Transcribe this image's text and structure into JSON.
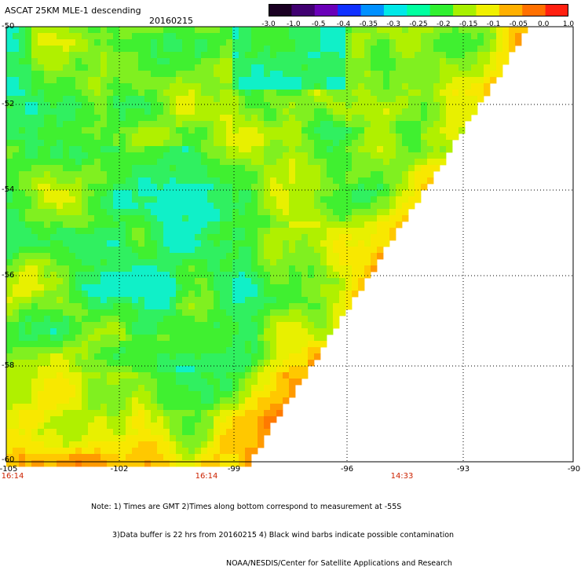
{
  "header": {
    "title": "ASCAT 25KM MLE-1 descending",
    "date": "20160215"
  },
  "colorbar": {
    "labels": [
      "-3.0",
      "-1.0",
      "-0.5",
      "-0.4",
      "-0.35",
      "-0.3",
      "-0.25",
      "-0.2",
      "-0.15",
      "-0.1",
      "-0.05",
      "0.0",
      "1.0"
    ],
    "colors": [
      "#1a0022",
      "#400070",
      "#6a00b8",
      "#1030ff",
      "#0090ff",
      "#00e8e8",
      "#00ffa0",
      "#30f030",
      "#a8f000",
      "#f0f000",
      "#ffb000",
      "#ff7000",
      "#ff2010"
    ]
  },
  "map": {
    "lat_labels": [
      "-50",
      "-52",
      "-54",
      "-56",
      "-58",
      "-60"
    ],
    "lon_labels": [
      "-105",
      "-102",
      "-99",
      "-96",
      "-93",
      "-90"
    ],
    "time_labels": [
      "16:14",
      "16:14",
      "14:33"
    ]
  },
  "notes": [
    "Note: 1) Times are GMT 2)Times along bottom correspond to measurement at -55S",
    "3)Data buffer is 22 hrs from 20160215 4) Black wind barbs indicate possible contamination",
    "NOAA/NESDIS/Center for Satellite Applications and Research"
  ]
}
